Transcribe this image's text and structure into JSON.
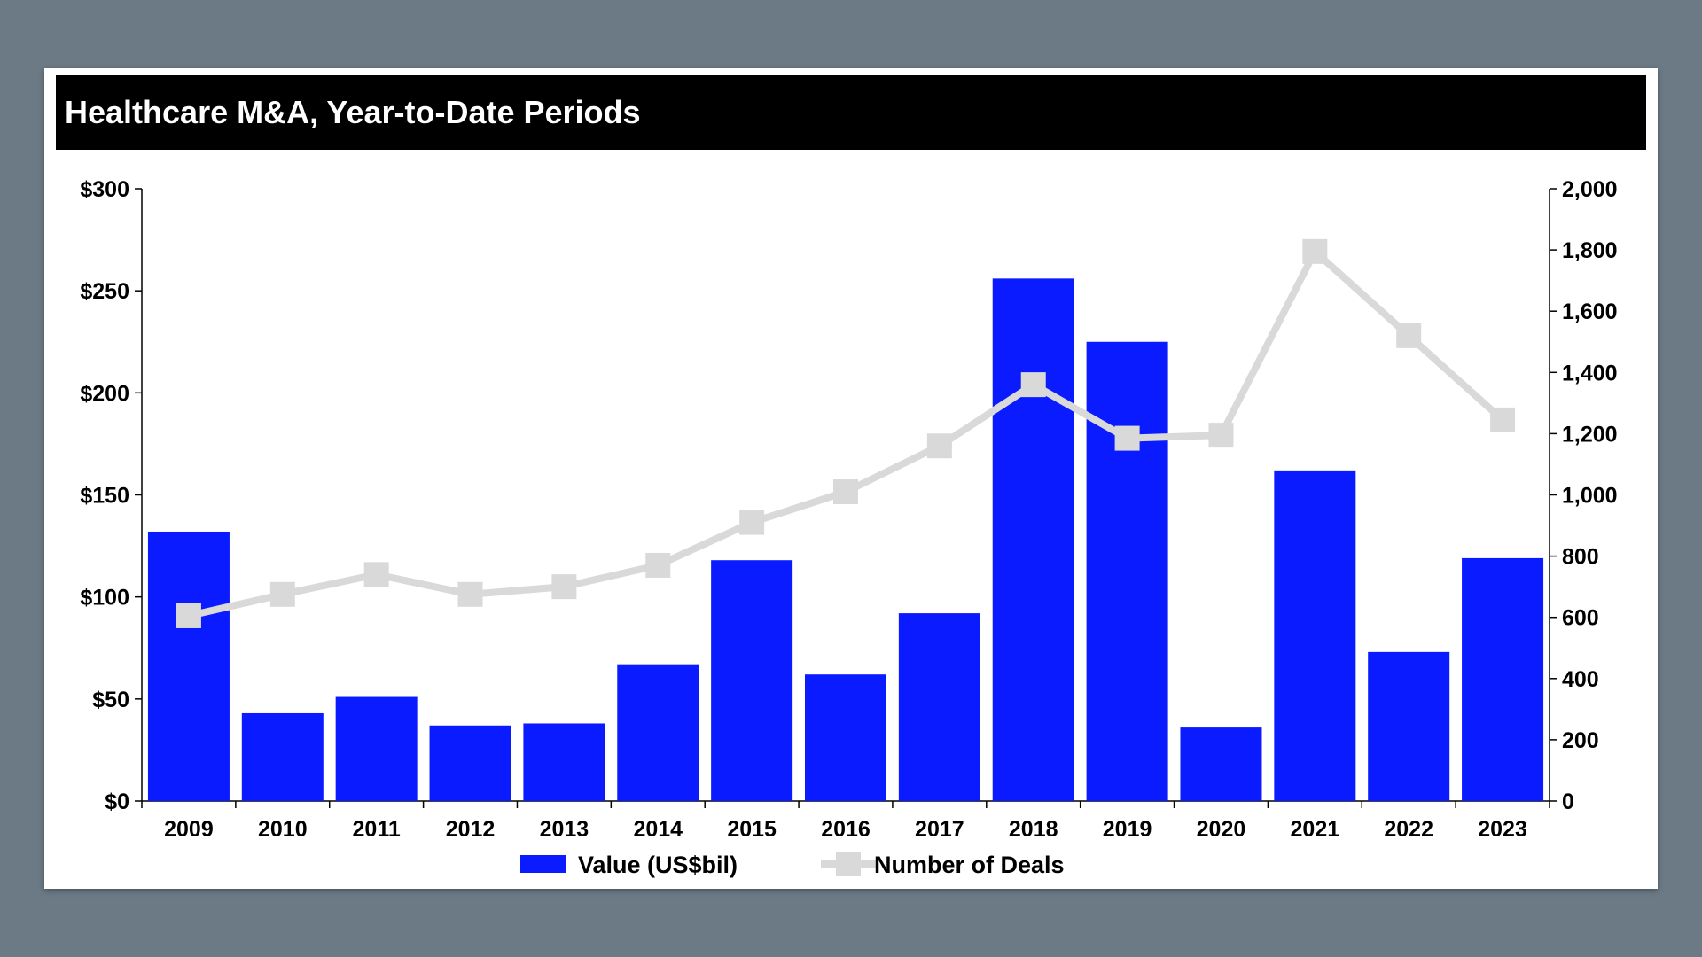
{
  "chart_data": {
    "type": "bar",
    "title": "Healthcare M&A, Year-to-Date Periods",
    "categories": [
      "2009",
      "2010",
      "2011",
      "2012",
      "2013",
      "2014",
      "2015",
      "2016",
      "2017",
      "2018",
      "2019",
      "2020",
      "2021",
      "2022",
      "2023"
    ],
    "series": [
      {
        "name": "Value (US$bil)",
        "type": "bar",
        "axis": "left",
        "color": "#0a1cff",
        "values": [
          132,
          43,
          51,
          37,
          38,
          67,
          118,
          62,
          92,
          256,
          225,
          36,
          162,
          73,
          119
        ]
      },
      {
        "name": "Number of Deals",
        "type": "line",
        "axis": "right",
        "color": "#d9d9d9",
        "values": [
          605,
          675,
          740,
          675,
          700,
          770,
          910,
          1010,
          1160,
          1360,
          1185,
          1195,
          1795,
          1520,
          1245
        ]
      }
    ],
    "y_left": {
      "min": 0,
      "max": 300,
      "ticks": [
        0,
        50,
        100,
        150,
        200,
        250,
        300
      ],
      "tick_labels": [
        "$0",
        "$50",
        "$100",
        "$150",
        "$200",
        "$250",
        "$300"
      ]
    },
    "y_right": {
      "min": 0,
      "max": 2000,
      "ticks": [
        0,
        200,
        400,
        600,
        800,
        1000,
        1200,
        1400,
        1600,
        1800,
        2000
      ],
      "tick_labels": [
        "0",
        "200",
        "400",
        "600",
        "800",
        "1,000",
        "1,200",
        "1,400",
        "1,600",
        "1,800",
        "2,000"
      ]
    },
    "grid": false,
    "legend_position": "bottom-center"
  },
  "colors": {
    "background": "#6b7a85",
    "card": "#ffffff",
    "title_bar": "#000000",
    "bar": "#0a1cff",
    "line": "#d9d9d9"
  }
}
